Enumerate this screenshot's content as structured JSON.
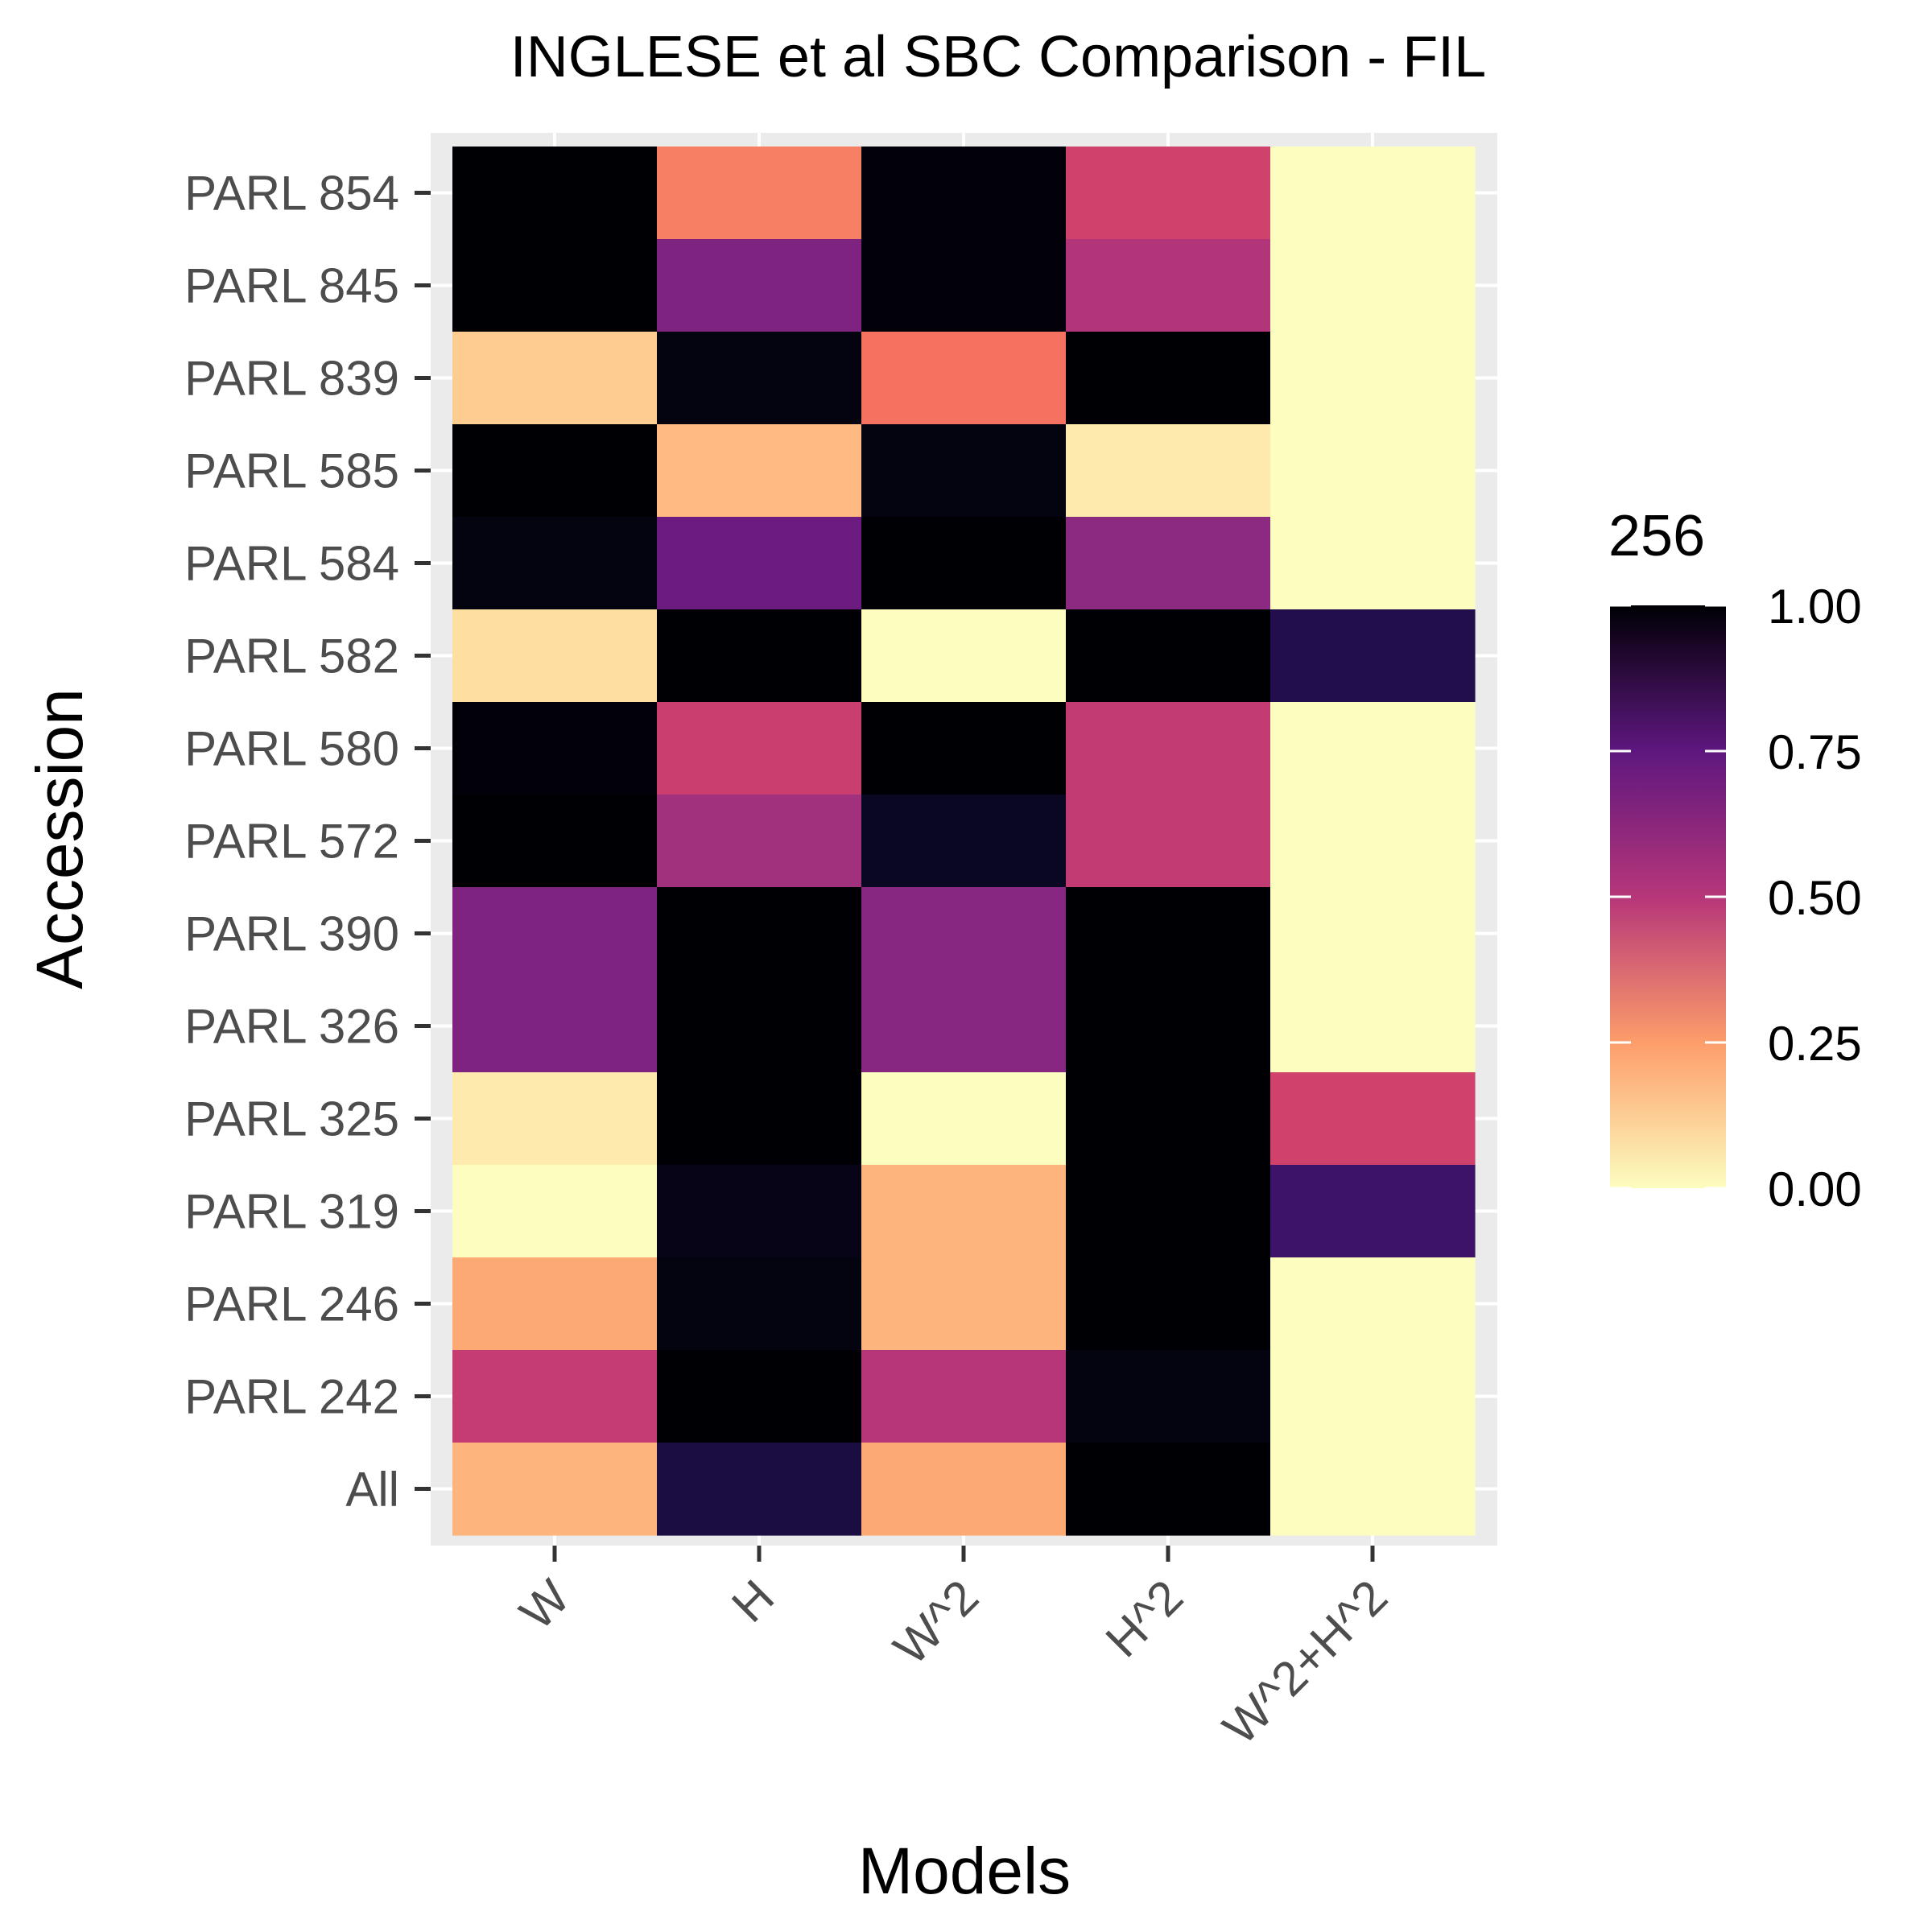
{
  "chart_data": {
    "type": "heatmap",
    "title": "INGLESE et al SBC Comparison - FIL",
    "xlabel": "Models",
    "ylabel": "Accession",
    "x_categories": [
      "W",
      "H",
      "W^2",
      "H^2",
      "W^2+H^2"
    ],
    "y_categories": [
      "PARL 854",
      "PARL 845",
      "PARL 839",
      "PARL 585",
      "PARL 584",
      "PARL 582",
      "PARL 580",
      "PARL 572",
      "PARL 390",
      "PARL 326",
      "PARL 325",
      "PARL 319",
      "PARL 246",
      "PARL 242",
      "All"
    ],
    "values": [
      [
        1.0,
        0.25,
        0.99,
        0.44,
        0.0
      ],
      [
        1.0,
        0.68,
        0.99,
        0.56,
        0.0
      ],
      [
        0.12,
        0.98,
        0.27,
        1.0,
        0.0
      ],
      [
        1.0,
        0.15,
        0.98,
        0.05,
        0.0
      ],
      [
        0.98,
        0.72,
        1.0,
        0.65,
        0.0
      ],
      [
        0.08,
        1.0,
        0.0,
        1.0,
        0.88
      ],
      [
        0.99,
        0.47,
        1.0,
        0.5,
        0.0
      ],
      [
        1.0,
        0.6,
        0.95,
        0.5,
        0.0
      ],
      [
        0.68,
        1.0,
        0.66,
        1.0,
        0.0
      ],
      [
        0.68,
        1.0,
        0.66,
        1.0,
        0.0
      ],
      [
        0.05,
        1.0,
        0.0,
        1.0,
        0.44
      ],
      [
        0.0,
        0.97,
        0.16,
        1.0,
        0.82
      ],
      [
        0.18,
        0.98,
        0.16,
        1.0,
        0.0
      ],
      [
        0.49,
        1.0,
        0.55,
        0.98,
        0.0
      ],
      [
        0.16,
        0.9,
        0.18,
        1.0,
        0.0
      ]
    ],
    "legend": {
      "title": "256",
      "ticks": [
        "1.00",
        "0.75",
        "0.50",
        "0.25",
        "0.00"
      ],
      "tick_values": [
        1.0,
        0.75,
        0.5,
        0.25,
        0.0
      ],
      "placement": "right"
    },
    "colormap": "magma",
    "grid": true
  }
}
